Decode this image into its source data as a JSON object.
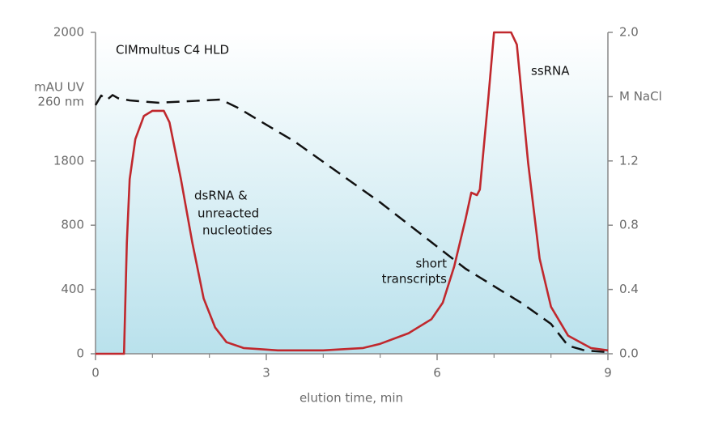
{
  "chart_data": {
    "type": "line",
    "annotations": [
      "CIMmultus C4 HLD",
      "ssRNA",
      [
        "dsRNA &",
        "unreacted",
        "nucleotides"
      ],
      [
        "short",
        "transcripts"
      ]
    ],
    "xlabel": "elution time, min",
    "ylabel": [
      "mAU UV",
      "260 nm"
    ],
    "xlim": [
      0,
      9
    ],
    "xticks": [
      0,
      3,
      6,
      9
    ],
    "xminor_ticks": [
      1,
      2,
      4,
      5,
      7,
      8
    ],
    "ylim": [
      0,
      2000
    ],
    "yticks": [
      0,
      400,
      800,
      1800,
      2000
    ],
    "y2lim": [
      0,
      2.0
    ],
    "y2ticks": [
      {
        "value": 0,
        "label": "0.0"
      },
      0.4,
      0.8,
      1.2,
      {
        "value": 1.6,
        "label": "M NaCl"
      },
      {
        "value": 2.0,
        "label": "2.0"
      }
    ],
    "series": [
      {
        "name": "UV 260 nm",
        "color": "#c0282d",
        "axis": "y",
        "x": [
          0,
          0.5,
          0.55,
          0.6,
          0.7,
          0.85,
          1.0,
          1.2,
          1.3,
          1.5,
          1.7,
          1.9,
          2.1,
          2.3,
          2.6,
          3.2,
          4.0,
          4.7,
          5.0,
          5.5,
          5.9,
          6.1,
          6.3,
          6.5,
          6.6,
          6.7,
          6.75,
          6.9,
          7.0,
          7.3,
          7.4,
          7.6,
          7.8,
          8.0,
          8.3,
          8.7,
          9.0
        ],
        "values": [
          0,
          0,
          691,
          1516,
          1834,
          1870,
          1878,
          1878,
          1860,
          1516,
          691,
          344,
          164,
          72,
          36,
          21,
          21,
          36,
          62,
          128,
          215,
          318,
          543,
          899,
          1306,
          1269,
          1356,
          1898,
          2000,
          2000,
          1981,
          1763,
          593,
          292,
          113,
          36,
          21
        ]
      },
      {
        "name": "M NaCl",
        "color": "#111111",
        "axis": "y2",
        "dashed": true,
        "x": [
          0,
          0.1,
          0.2,
          0.3,
          0.4,
          0.6,
          1.1,
          2.2,
          2.5,
          3.5,
          5.0,
          6.5,
          7.5,
          8.0,
          8.3,
          8.6,
          9.0
        ],
        "values": [
          1.547,
          1.607,
          1.58,
          1.61,
          1.59,
          1.577,
          1.562,
          1.582,
          1.531,
          1.32,
          0.942,
          0.529,
          0.312,
          0.186,
          0.05,
          0.02,
          0.01
        ]
      }
    ]
  }
}
